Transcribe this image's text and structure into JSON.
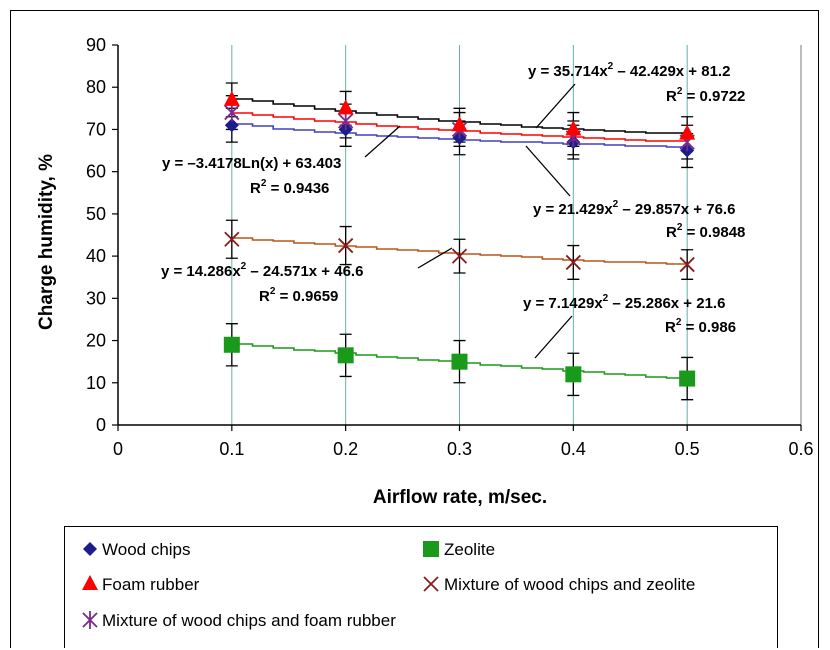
{
  "chart_data": {
    "type": "scatter",
    "xlabel": "Airflow rate, m/sec.",
    "ylabel": "Charge humidity, %",
    "xlim": [
      0,
      0.6
    ],
    "ylim": [
      0,
      90
    ],
    "x_ticks": [
      "0",
      "0.1",
      "0.2",
      "0.3",
      "0.4",
      "0.5",
      "0.6"
    ],
    "y_ticks": [
      "0",
      "10",
      "20",
      "30",
      "40",
      "50",
      "60",
      "70",
      "80",
      "90"
    ],
    "grid": "vertical",
    "legend_position": "bottom",
    "series": [
      {
        "name": "Wood chips",
        "marker": "diamond",
        "color": "#1c1c8c",
        "trend_color": "#4040c0",
        "x": [
          0.1,
          0.2,
          0.3,
          0.4,
          0.5
        ],
        "y": [
          71,
          70,
          68,
          67,
          65
        ],
        "err": [
          4,
          4,
          4,
          4,
          4
        ],
        "trend": {
          "type": "log",
          "a": -3.4178,
          "b": 63.403
        }
      },
      {
        "name": "Zeolite",
        "marker": "square",
        "color": "#1a9a1a",
        "trend_color": "#1a9a1a",
        "x": [
          0.1,
          0.2,
          0.3,
          0.4,
          0.5
        ],
        "y": [
          19,
          16.5,
          15,
          12,
          11
        ],
        "err": [
          5,
          5,
          5,
          5,
          5
        ],
        "trend": {
          "type": "poly2",
          "a": 7.1429,
          "b": -25.286,
          "c": 21.6
        }
      },
      {
        "name": "Foam rubber",
        "marker": "triangle",
        "color": "#ff0000",
        "trend_color": "#ff0000",
        "x": [
          0.1,
          0.2,
          0.3,
          0.4,
          0.5
        ],
        "y": [
          77,
          75,
          71,
          70,
          69
        ],
        "err": [
          4,
          4,
          4,
          4,
          4
        ],
        "trend": {
          "type": "poly2",
          "a": 21.429,
          "b": -29.857,
          "c": 76.6
        }
      },
      {
        "name": "Mixture of wood chips and zeolite",
        "marker": "x",
        "color": "#8b1a1a",
        "trend_color": "#b8561a",
        "x": [
          0.1,
          0.2,
          0.3,
          0.4,
          0.5
        ],
        "y": [
          44,
          42.5,
          40,
          38.5,
          38
        ],
        "err": [
          4.5,
          4.5,
          4,
          4,
          3.5
        ],
        "trend": {
          "type": "poly2",
          "a": 14.286,
          "b": -24.571,
          "c": 46.6
        }
      },
      {
        "name": "Mixture of wood chips and foam rubber",
        "marker": "star",
        "color": "#7a2a8a",
        "trend_color": "#000000",
        "x": [
          0.1,
          0.2,
          0.3,
          0.4,
          0.5
        ],
        "y": [
          74,
          72,
          70,
          68,
          67
        ],
        "err": [
          4,
          4,
          4,
          4,
          4
        ],
        "trend": {
          "type": "poly2",
          "a": 35.714,
          "b": -42.429,
          "c": 81.2
        }
      }
    ],
    "annotations": [
      {
        "eq": [
          "y = 35.714x",
          "2",
          " – 42.429x + 81.2"
        ],
        "r2": "0.9722"
      },
      {
        "eq": [
          "y = –3.4178Ln(x) + 63.403",
          "",
          ""
        ],
        "r2": "0.9436"
      },
      {
        "eq": [
          "y = 21.429x",
          "2",
          " – 29.857x + 76.6"
        ],
        "r2": "0.9848"
      },
      {
        "eq": [
          "y = 14.286x",
          "2",
          " – 24.571x + 46.6"
        ],
        "r2": "0.9659"
      },
      {
        "eq": [
          "y = 7.1429x",
          "2",
          " – 25.286x + 21.6"
        ],
        "r2": "0.986"
      }
    ],
    "r2_prefix": "R",
    "r2_sup": "2",
    "r2_eq": " = "
  }
}
